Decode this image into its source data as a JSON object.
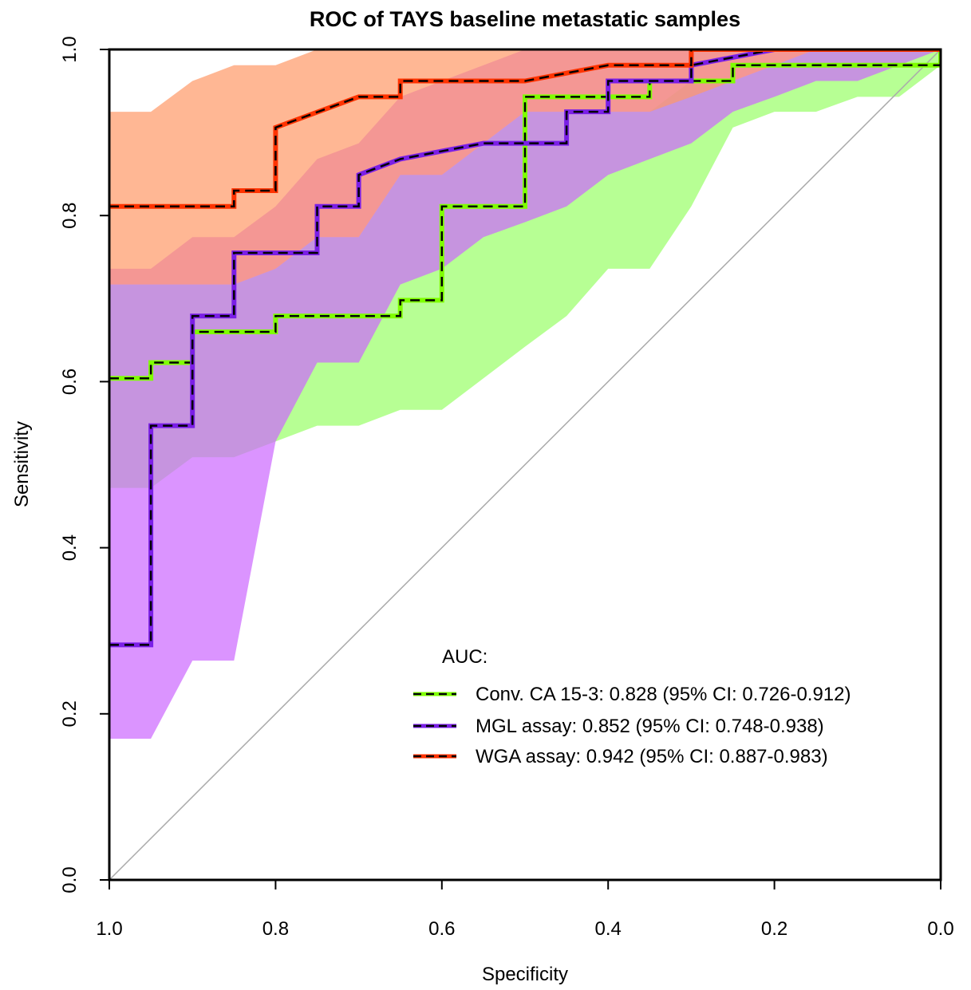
{
  "chart_data": {
    "type": "line",
    "title": "ROC of TAYS baseline metastatic samples",
    "xlabel": "Specificity",
    "ylabel": "Sensitivity",
    "xlim": [
      1.0,
      0.0
    ],
    "ylim": [
      0.0,
      1.0
    ],
    "x_reversed": true,
    "xticks": [
      "1.0",
      "0.8",
      "0.6",
      "0.4",
      "0.2",
      "0.0"
    ],
    "yticks": [
      "0.0",
      "0.2",
      "0.4",
      "0.6",
      "0.8",
      "1.0"
    ],
    "grid": false,
    "diagonal_reference": true,
    "legend": {
      "title": "AUC:",
      "position": "bottom-right",
      "entries": [
        "Conv. CA 15-3: 0.828 (95% CI: 0.726-0.912)",
        "MGL assay: 0.852 (95% CI: 0.748-0.938)",
        "WGA assay: 0.942 (95% CI: 0.887-0.983)"
      ]
    },
    "series": [
      {
        "name": "Conv. CA 15-3",
        "auc": 0.828,
        "ci": [
          0.726,
          0.912
        ],
        "color": "#7fff00",
        "band_color": "#99ff66",
        "specificity": [
          1.0,
          0.95,
          0.95,
          0.9,
          0.9,
          0.8,
          0.8,
          0.65,
          0.65,
          0.6,
          0.6,
          0.5,
          0.5,
          0.35,
          0.35,
          0.25,
          0.25,
          0.0,
          0.0
        ],
        "sensitivity": [
          0.604,
          0.604,
          0.623,
          0.623,
          0.66,
          0.66,
          0.679,
          0.679,
          0.698,
          0.698,
          0.811,
          0.811,
          0.943,
          0.943,
          0.962,
          0.962,
          0.981,
          0.981,
          1.0
        ],
        "ci_band": {
          "specificity": [
            1.0,
            0.95,
            0.9,
            0.85,
            0.8,
            0.75,
            0.7,
            0.65,
            0.6,
            0.55,
            0.5,
            0.45,
            0.4,
            0.35,
            0.3,
            0.25,
            0.2,
            0.15,
            0.1,
            0.05,
            0.0
          ],
          "upper": [
            0.717,
            0.717,
            0.717,
            0.717,
            0.736,
            0.774,
            0.774,
            0.849,
            0.849,
            0.887,
            0.925,
            0.925,
            0.925,
            0.925,
            0.962,
            0.962,
            0.981,
            1.0,
            1.0,
            1.0,
            1.0
          ],
          "lower": [
            0.472,
            0.472,
            0.509,
            0.509,
            0.528,
            0.547,
            0.547,
            0.566,
            0.566,
            0.604,
            0.642,
            0.679,
            0.736,
            0.736,
            0.811,
            0.906,
            0.925,
            0.925,
            0.943,
            0.943,
            0.981
          ]
        }
      },
      {
        "name": "MGL assay",
        "auc": 0.852,
        "ci": [
          0.748,
          0.938
        ],
        "color": "#7a1fe6",
        "band_color": "#cc66ff",
        "specificity": [
          1.0,
          0.95,
          0.95,
          0.9,
          0.9,
          0.85,
          0.85,
          0.75,
          0.75,
          0.7,
          0.7,
          0.65,
          0.55,
          0.45,
          0.45,
          0.4,
          0.4,
          0.3,
          0.3,
          0.2
        ],
        "sensitivity": [
          0.283,
          0.283,
          0.547,
          0.547,
          0.679,
          0.679,
          0.755,
          0.755,
          0.811,
          0.811,
          0.849,
          0.868,
          0.887,
          0.887,
          0.925,
          0.925,
          0.962,
          0.962,
          0.981,
          1.0
        ],
        "ci_band": {
          "specificity": [
            1.0,
            0.95,
            0.9,
            0.85,
            0.8,
            0.75,
            0.7,
            0.65,
            0.6,
            0.55,
            0.5,
            0.45,
            0.4,
            0.35,
            0.3,
            0.25,
            0.2,
            0.15,
            0.1,
            0.05,
            0.0
          ],
          "upper": [
            0.736,
            0.736,
            0.774,
            0.774,
            0.811,
            0.868,
            0.887,
            0.943,
            0.962,
            0.981,
            1.0,
            1.0,
            1.0,
            1.0,
            1.0,
            1.0,
            1.0,
            1.0,
            1.0,
            1.0,
            1.0
          ],
          "lower": [
            0.17,
            0.17,
            0.264,
            0.264,
            0.528,
            0.623,
            0.623,
            0.717,
            0.736,
            0.774,
            0.792,
            0.811,
            0.849,
            0.868,
            0.887,
            0.925,
            0.943,
            0.962,
            0.962,
            0.981,
            1.0
          ]
        }
      },
      {
        "name": "WGA assay",
        "auc": 0.942,
        "ci": [
          0.887,
          0.983
        ],
        "color": "#ff3300",
        "band_color": "#ff9966",
        "specificity": [
          1.0,
          0.85,
          0.85,
          0.8,
          0.8,
          0.7,
          0.65,
          0.65,
          0.5,
          0.4,
          0.3,
          0.3,
          0.0
        ],
        "sensitivity": [
          0.811,
          0.811,
          0.83,
          0.83,
          0.906,
          0.943,
          0.943,
          0.962,
          0.962,
          0.981,
          0.981,
          1.0,
          1.0
        ],
        "ci_band": {
          "specificity": [
            1.0,
            0.95,
            0.9,
            0.85,
            0.8,
            0.75,
            0.7,
            0.65,
            0.6,
            0.55,
            0.5,
            0.45,
            0.4,
            0.35,
            0.3,
            0.25,
            0.2,
            0.15,
            0.1,
            0.05,
            0.0
          ],
          "upper": [
            0.925,
            0.925,
            0.962,
            0.981,
            0.981,
            1.0,
            1.0,
            1.0,
            1.0,
            1.0,
            1.0,
            1.0,
            1.0,
            1.0,
            1.0,
            1.0,
            1.0,
            1.0,
            1.0,
            1.0,
            1.0
          ],
          "lower": [
            0.717,
            0.717,
            0.717,
            0.717,
            0.736,
            0.774,
            0.774,
            0.849,
            0.849,
            0.887,
            0.925,
            0.925,
            0.925,
            0.925,
            0.943,
            0.962,
            0.981,
            1.0,
            1.0,
            1.0,
            1.0
          ]
        }
      }
    ]
  }
}
